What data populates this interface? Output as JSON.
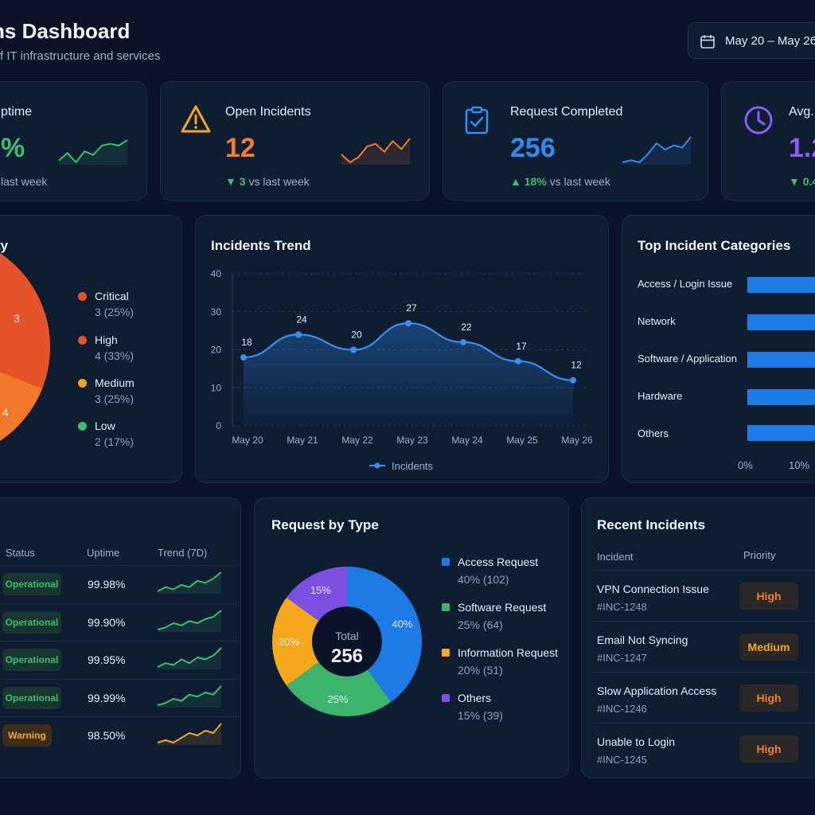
{
  "header": {
    "title": "ns Dashboard",
    "subtitle": "f IT infrastructure and services",
    "date_range": "May 20 – May 26",
    "date_icon": "calendar-icon"
  },
  "colors": {
    "background": "#0b1426",
    "card": "#0f1d33",
    "green": "#3dbd6e",
    "orange": "#f47c2a",
    "blue": "#2f8cf0",
    "purple": "#8e5cf0",
    "red": "#e5532b",
    "yellow": "#f5a524"
  },
  "kpis": [
    {
      "label": "ptime",
      "value": "%",
      "delta_arrow": "",
      "delta_value": "",
      "delta_text": "last week",
      "icon": "uptime-icon",
      "value_color": "#3dbd6e",
      "spark_color": "#3dbd6e",
      "spark": [
        8,
        12,
        7,
        13,
        11,
        16,
        17,
        16,
        19
      ]
    },
    {
      "label": "Open Incidents",
      "value": "12",
      "delta_arrow": "▼",
      "delta_value": "3",
      "delta_text": "vs last week",
      "icon": "warning-icon",
      "value_color": "#f47c2a",
      "spark_color": "#f47c2a",
      "spark": [
        10,
        7,
        9,
        13,
        14,
        11,
        15,
        12,
        16
      ]
    },
    {
      "label": "Request Completed",
      "value": "256",
      "delta_arrow": "▲",
      "delta_value": "18%",
      "delta_text": "vs last week",
      "icon": "clipboard-check-icon",
      "value_color": "#2f8cf0",
      "spark_color": "#2f8cf0",
      "spark": [
        5,
        6,
        5,
        9,
        14,
        11,
        13,
        12,
        17
      ]
    },
    {
      "label": "Avg.",
      "value": "1.2",
      "delta_arrow": "▼",
      "delta_value": "0.4",
      "delta_text": "",
      "icon": "clock-icon",
      "value_color": "#8e5cf0",
      "spark_color": "#8e5cf0",
      "spark": []
    }
  ],
  "severity": {
    "title": "ty",
    "donut_labels": [
      "3",
      "4"
    ],
    "items": [
      {
        "name": "Critical",
        "detail": "3 (25%)",
        "color": "#e5532b"
      },
      {
        "name": "High",
        "detail": "4 (33%)",
        "color": "#e5532b"
      },
      {
        "name": "Medium",
        "detail": "3 (25%)",
        "color": "#f5a524"
      },
      {
        "name": "Low",
        "detail": "2 (17%)",
        "color": "#3dbd6e"
      }
    ]
  },
  "chart_data": [
    {
      "type": "area",
      "title": "Incidents Trend",
      "categories": [
        "May 20",
        "May 21",
        "May 22",
        "May 23",
        "May 24",
        "May 25",
        "May 26"
      ],
      "series": [
        {
          "name": "Incidents",
          "values": [
            18,
            24,
            20,
            27,
            22,
            17,
            12
          ]
        }
      ],
      "ylim": [
        0,
        40
      ],
      "yticks": [
        0,
        10,
        20,
        30,
        40
      ],
      "grid": true,
      "legend": "bottom"
    },
    {
      "type": "bar",
      "title": "Top Incident Categories",
      "orientation": "horizontal",
      "categories": [
        "Access / Login Issue",
        "Network",
        "Software / Application",
        "Hardware",
        "Others"
      ],
      "xticks": [
        "0%",
        "10%"
      ]
    },
    {
      "type": "pie",
      "title": "Request by Type",
      "center_label": "Total",
      "center_value": "256",
      "slices": [
        {
          "name": "Access Request",
          "value": 40,
          "count": 102,
          "label": "40%",
          "detail": "40% (102)",
          "color": "#1e7be6"
        },
        {
          "name": "Software Request",
          "value": 25,
          "count": 64,
          "label": "25%",
          "detail": "25% (64)",
          "color": "#3cb46e"
        },
        {
          "name": "Information Request",
          "value": 20,
          "count": 51,
          "label": "20%",
          "detail": "20% (51)",
          "color": "#f5a81c"
        },
        {
          "name": "Others",
          "value": 15,
          "count": 39,
          "label": "15%",
          "detail": "15% (39)",
          "color": "#7b4fe0"
        }
      ]
    }
  ],
  "services": {
    "headers": {
      "status": "Status",
      "uptime": "Uptime",
      "trend": "Trend (7D)"
    },
    "rows": [
      {
        "status": "Operational",
        "uptime": "99.98%",
        "kind": "ok",
        "spark": [
          3,
          5,
          4,
          6,
          5,
          8,
          7,
          9,
          12
        ]
      },
      {
        "status": "Operational",
        "uptime": "99.90%",
        "kind": "ok",
        "spark": [
          3,
          4,
          6,
          5,
          7,
          6,
          8,
          9,
          12
        ]
      },
      {
        "status": "Operational",
        "uptime": "99.95%",
        "kind": "ok",
        "spark": [
          3,
          5,
          4,
          7,
          5,
          8,
          7,
          9,
          13
        ]
      },
      {
        "status": "Operational",
        "uptime": "99.99%",
        "kind": "ok",
        "spark": [
          3,
          4,
          6,
          5,
          8,
          7,
          9,
          8,
          12
        ]
      },
      {
        "status": "Warning",
        "uptime": "98.50%",
        "kind": "warn",
        "spark": [
          3,
          4,
          3,
          5,
          7,
          6,
          8,
          7,
          11
        ]
      }
    ]
  },
  "recent": {
    "title": "Recent Incidents",
    "headers": {
      "incident": "Incident",
      "priority": "Priority"
    },
    "rows": [
      {
        "name": "VPN Connection Issue",
        "id": "#INC-1248",
        "priority": "High",
        "color": "#f47c2a"
      },
      {
        "name": "Email Not Syncing",
        "id": "#INC-1247",
        "priority": "Medium",
        "color": "#f5a524"
      },
      {
        "name": "Slow Application Access",
        "id": "#INC-1246",
        "priority": "High",
        "color": "#f47c2a"
      },
      {
        "name": "Unable to Login",
        "id": "#INC-1245",
        "priority": "High",
        "color": "#f47c2a"
      }
    ]
  }
}
